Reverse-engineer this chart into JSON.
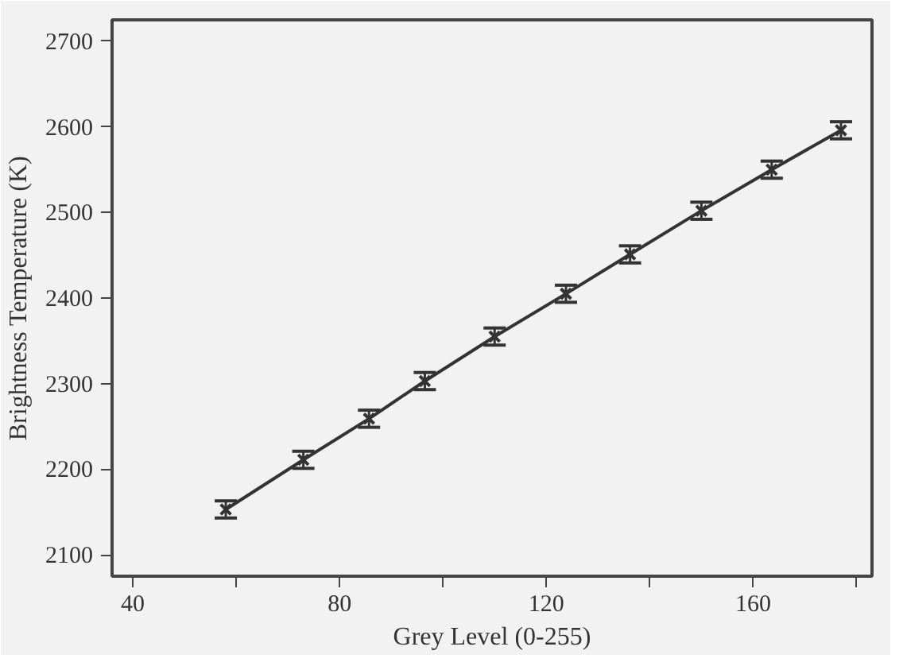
{
  "chart_data": {
    "type": "line",
    "xlabel": "Grey Level (0-255)",
    "ylabel": "Brightness Temperature (K)",
    "x": [
      58,
      73,
      85.7,
      96.5,
      110,
      123.8,
      136.2,
      150,
      163.6,
      177
    ],
    "values": [
      2153,
      2211,
      2259,
      2303,
      2355,
      2405,
      2451,
      2502,
      2550,
      2596
    ],
    "errors": [
      10,
      10,
      10,
      10,
      10,
      10,
      10,
      10,
      10,
      10
    ],
    "color": "#333333",
    "marker": "cross",
    "line_style": "solid",
    "xlim": [
      36,
      183
    ],
    "ylim": [
      2075,
      2725
    ],
    "xticks": [
      40,
      {
        "value": 60,
        "label": null
      },
      80,
      {
        "value": 100,
        "label": null
      },
      120,
      {
        "value": 140,
        "label": null
      },
      160,
      {
        "value": 180,
        "label": null
      }
    ],
    "yticks": [
      2100,
      2200,
      2300,
      2400,
      2500,
      2600,
      2700
    ],
    "grid": false
  }
}
